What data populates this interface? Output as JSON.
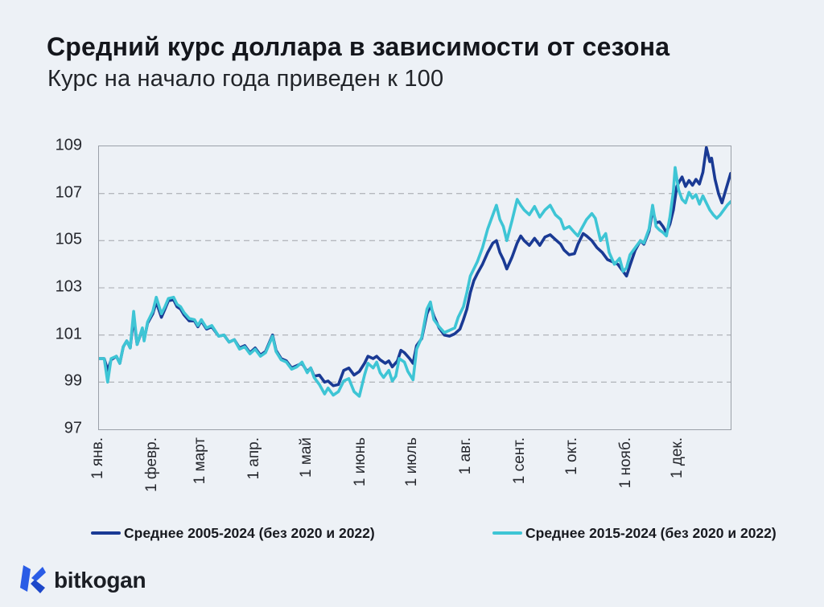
{
  "header": {
    "title": "Средний курс доллара в зависимости от сезона",
    "subtitle": "Курс на начало года приведен к 100"
  },
  "colors": {
    "background": "#edf1f6",
    "plot_border": "#9ba0a8",
    "gridline": "#b5b8be",
    "series_dark": "#1a3a94",
    "series_cyan": "#3ec5d5",
    "text_dark": "#14161c",
    "logo_blue": "#2a5ce6",
    "logo_blue_dark": "#1d47c9"
  },
  "footer": {
    "logo_text": "bitkogan"
  },
  "chart_data": {
    "type": "line",
    "title": "Средний курс доллара в зависимости от сезона",
    "subtitle": "Курс на начало года приведен к 100",
    "xlabel": "",
    "ylabel": "",
    "x_unit": "day_of_year",
    "x_range": [
      0,
      364
    ],
    "ylim": [
      97,
      109
    ],
    "yticks": [
      97,
      99,
      101,
      103,
      105,
      107,
      109
    ],
    "grid": "horizontal dashed",
    "legend_position": "bottom",
    "x_tick_days": [
      0,
      31,
      59,
      90,
      120,
      151,
      181,
      212,
      243,
      273,
      304,
      334
    ],
    "x_tick_labels": [
      "1 янв.",
      "1 февр.",
      "1 март",
      "1 апр.",
      "1 май",
      "1 июнь",
      "1 июль",
      "1 авг.",
      "1 сент.",
      "1 окт.",
      "1 нояб.",
      "1 дек."
    ],
    "series": [
      {
        "name": "Среднее 2005-2024 (без 2020 и 2022)",
        "color": "#1a3a94",
        "points": [
          [
            0,
            100.0
          ],
          [
            3,
            100.0
          ],
          [
            5,
            99.5
          ],
          [
            7,
            99.95
          ],
          [
            10,
            100.1
          ],
          [
            12,
            99.8
          ],
          [
            14,
            100.5
          ],
          [
            16,
            100.75
          ],
          [
            18,
            100.45
          ],
          [
            20,
            101.75
          ],
          [
            22,
            100.6
          ],
          [
            25,
            101.25
          ],
          [
            26,
            100.8
          ],
          [
            28,
            101.5
          ],
          [
            31,
            101.9
          ],
          [
            33,
            102.4
          ],
          [
            36,
            101.75
          ],
          [
            38,
            102.1
          ],
          [
            40,
            102.45
          ],
          [
            43,
            102.5
          ],
          [
            45,
            102.2
          ],
          [
            47,
            102.1
          ],
          [
            49,
            101.85
          ],
          [
            52,
            101.6
          ],
          [
            55,
            101.6
          ],
          [
            57,
            101.35
          ],
          [
            59,
            101.6
          ],
          [
            62,
            101.25
          ],
          [
            65,
            101.35
          ],
          [
            69,
            100.95
          ],
          [
            72,
            101.0
          ],
          [
            75,
            100.7
          ],
          [
            78,
            100.8
          ],
          [
            81,
            100.45
          ],
          [
            84,
            100.55
          ],
          [
            87,
            100.25
          ],
          [
            90,
            100.45
          ],
          [
            93,
            100.15
          ],
          [
            96,
            100.3
          ],
          [
            100,
            101.0
          ],
          [
            102,
            100.35
          ],
          [
            105,
            100.0
          ],
          [
            108,
            99.9
          ],
          [
            111,
            99.6
          ],
          [
            114,
            99.7
          ],
          [
            117,
            99.8
          ],
          [
            120,
            99.45
          ],
          [
            122,
            99.6
          ],
          [
            124,
            99.25
          ],
          [
            127,
            99.3
          ],
          [
            130,
            99.0
          ],
          [
            132,
            99.05
          ],
          [
            135,
            98.85
          ],
          [
            138,
            98.9
          ],
          [
            141,
            99.5
          ],
          [
            144,
            99.6
          ],
          [
            147,
            99.3
          ],
          [
            150,
            99.45
          ],
          [
            153,
            99.8
          ],
          [
            155,
            100.1
          ],
          [
            158,
            100.0
          ],
          [
            160,
            100.1
          ],
          [
            162,
            99.95
          ],
          [
            165,
            99.8
          ],
          [
            167,
            99.9
          ],
          [
            169,
            99.65
          ],
          [
            172,
            99.9
          ],
          [
            174,
            100.35
          ],
          [
            176,
            100.25
          ],
          [
            179,
            100.0
          ],
          [
            181,
            99.8
          ],
          [
            183,
            100.55
          ],
          [
            186,
            100.85
          ],
          [
            189,
            101.9
          ],
          [
            191,
            102.25
          ],
          [
            193,
            101.8
          ],
          [
            196,
            101.3
          ],
          [
            199,
            101.0
          ],
          [
            202,
            100.95
          ],
          [
            205,
            101.05
          ],
          [
            208,
            101.25
          ],
          [
            210,
            101.65
          ],
          [
            212,
            102.1
          ],
          [
            214,
            102.8
          ],
          [
            216,
            103.3
          ],
          [
            218,
            103.6
          ],
          [
            221,
            104.0
          ],
          [
            224,
            104.5
          ],
          [
            227,
            104.9
          ],
          [
            229,
            105.0
          ],
          [
            231,
            104.5
          ],
          [
            233,
            104.2
          ],
          [
            235,
            103.8
          ],
          [
            238,
            104.3
          ],
          [
            241,
            104.9
          ],
          [
            243,
            105.2
          ],
          [
            245,
            105.0
          ],
          [
            248,
            104.8
          ],
          [
            251,
            105.1
          ],
          [
            254,
            104.8
          ],
          [
            257,
            105.15
          ],
          [
            260,
            105.25
          ],
          [
            263,
            105.05
          ],
          [
            266,
            104.85
          ],
          [
            268,
            104.6
          ],
          [
            271,
            104.4
          ],
          [
            274,
            104.45
          ],
          [
            276,
            104.85
          ],
          [
            279,
            105.3
          ],
          [
            281,
            105.2
          ],
          [
            284,
            105.0
          ],
          [
            287,
            104.7
          ],
          [
            290,
            104.5
          ],
          [
            293,
            104.2
          ],
          [
            296,
            104.1
          ],
          [
            299,
            104.0
          ],
          [
            301,
            103.8
          ],
          [
            304,
            103.5
          ],
          [
            306,
            103.95
          ],
          [
            309,
            104.6
          ],
          [
            312,
            105.0
          ],
          [
            314,
            104.85
          ],
          [
            317,
            105.4
          ],
          [
            319,
            106.3
          ],
          [
            321,
            105.75
          ],
          [
            323,
            105.8
          ],
          [
            325,
            105.6
          ],
          [
            327,
            105.35
          ],
          [
            329,
            105.7
          ],
          [
            331,
            106.3
          ],
          [
            333,
            107.3
          ],
          [
            334,
            107.45
          ],
          [
            336,
            107.7
          ],
          [
            338,
            107.3
          ],
          [
            340,
            107.55
          ],
          [
            342,
            107.35
          ],
          [
            344,
            107.6
          ],
          [
            346,
            107.4
          ],
          [
            348,
            107.9
          ],
          [
            350,
            108.95
          ],
          [
            352,
            108.35
          ],
          [
            353,
            108.5
          ],
          [
            355,
            107.6
          ],
          [
            357,
            107.0
          ],
          [
            359,
            106.6
          ],
          [
            361,
            107.1
          ],
          [
            363,
            107.6
          ],
          [
            364,
            107.85
          ]
        ]
      },
      {
        "name": "Среднее 2015-2024 (без 2020 и 2022)",
        "color": "#3ec5d5",
        "points": [
          [
            0,
            100.0
          ],
          [
            3,
            100.0
          ],
          [
            5,
            99.0
          ],
          [
            7,
            100.0
          ],
          [
            10,
            100.1
          ],
          [
            12,
            99.8
          ],
          [
            14,
            100.5
          ],
          [
            16,
            100.75
          ],
          [
            18,
            100.45
          ],
          [
            20,
            102.0
          ],
          [
            22,
            100.6
          ],
          [
            25,
            101.3
          ],
          [
            26,
            100.75
          ],
          [
            28,
            101.55
          ],
          [
            31,
            102.0
          ],
          [
            33,
            102.6
          ],
          [
            36,
            101.9
          ],
          [
            38,
            102.2
          ],
          [
            40,
            102.55
          ],
          [
            43,
            102.6
          ],
          [
            45,
            102.3
          ],
          [
            47,
            102.2
          ],
          [
            49,
            101.95
          ],
          [
            52,
            101.7
          ],
          [
            55,
            101.65
          ],
          [
            57,
            101.4
          ],
          [
            59,
            101.65
          ],
          [
            62,
            101.3
          ],
          [
            65,
            101.4
          ],
          [
            69,
            100.95
          ],
          [
            72,
            101.0
          ],
          [
            75,
            100.7
          ],
          [
            78,
            100.8
          ],
          [
            81,
            100.4
          ],
          [
            84,
            100.5
          ],
          [
            87,
            100.2
          ],
          [
            90,
            100.4
          ],
          [
            93,
            100.1
          ],
          [
            96,
            100.25
          ],
          [
            100,
            100.95
          ],
          [
            102,
            100.3
          ],
          [
            105,
            99.95
          ],
          [
            108,
            99.85
          ],
          [
            111,
            99.55
          ],
          [
            114,
            99.65
          ],
          [
            117,
            99.85
          ],
          [
            120,
            99.4
          ],
          [
            122,
            99.6
          ],
          [
            124,
            99.2
          ],
          [
            127,
            98.9
          ],
          [
            130,
            98.5
          ],
          [
            132,
            98.75
          ],
          [
            135,
            98.45
          ],
          [
            138,
            98.6
          ],
          [
            141,
            99.05
          ],
          [
            144,
            99.15
          ],
          [
            147,
            98.6
          ],
          [
            150,
            98.4
          ],
          [
            153,
            99.3
          ],
          [
            155,
            99.8
          ],
          [
            158,
            99.6
          ],
          [
            160,
            99.85
          ],
          [
            162,
            99.4
          ],
          [
            164,
            99.2
          ],
          [
            167,
            99.5
          ],
          [
            169,
            99.05
          ],
          [
            171,
            99.25
          ],
          [
            173,
            100.0
          ],
          [
            176,
            99.85
          ],
          [
            178,
            99.45
          ],
          [
            181,
            99.1
          ],
          [
            183,
            100.4
          ],
          [
            186,
            100.9
          ],
          [
            189,
            102.1
          ],
          [
            191,
            102.4
          ],
          [
            193,
            101.65
          ],
          [
            196,
            101.35
          ],
          [
            199,
            101.1
          ],
          [
            202,
            101.2
          ],
          [
            205,
            101.3
          ],
          [
            207,
            101.75
          ],
          [
            210,
            102.2
          ],
          [
            212,
            102.8
          ],
          [
            214,
            103.5
          ],
          [
            216,
            103.8
          ],
          [
            218,
            104.1
          ],
          [
            221,
            104.7
          ],
          [
            224,
            105.5
          ],
          [
            227,
            106.1
          ],
          [
            229,
            106.5
          ],
          [
            231,
            105.9
          ],
          [
            233,
            105.6
          ],
          [
            235,
            105.0
          ],
          [
            238,
            105.85
          ],
          [
            241,
            106.75
          ],
          [
            243,
            106.5
          ],
          [
            245,
            106.3
          ],
          [
            248,
            106.1
          ],
          [
            251,
            106.45
          ],
          [
            254,
            106.0
          ],
          [
            257,
            106.3
          ],
          [
            260,
            106.5
          ],
          [
            263,
            106.1
          ],
          [
            266,
            105.9
          ],
          [
            268,
            105.5
          ],
          [
            271,
            105.6
          ],
          [
            274,
            105.35
          ],
          [
            276,
            105.2
          ],
          [
            278,
            105.5
          ],
          [
            281,
            105.9
          ],
          [
            284,
            106.15
          ],
          [
            286,
            105.95
          ],
          [
            289,
            105.0
          ],
          [
            292,
            105.3
          ],
          [
            294,
            104.5
          ],
          [
            297,
            104.0
          ],
          [
            300,
            104.25
          ],
          [
            302,
            103.7
          ],
          [
            304,
            103.85
          ],
          [
            306,
            104.4
          ],
          [
            309,
            104.7
          ],
          [
            312,
            105.0
          ],
          [
            314,
            104.9
          ],
          [
            317,
            105.5
          ],
          [
            319,
            106.5
          ],
          [
            321,
            105.6
          ],
          [
            323,
            105.45
          ],
          [
            325,
            105.35
          ],
          [
            327,
            105.2
          ],
          [
            329,
            106.0
          ],
          [
            331,
            107.1
          ],
          [
            332,
            108.1
          ],
          [
            334,
            107.15
          ],
          [
            336,
            106.75
          ],
          [
            338,
            106.6
          ],
          [
            340,
            107.05
          ],
          [
            342,
            106.8
          ],
          [
            344,
            106.95
          ],
          [
            346,
            106.55
          ],
          [
            348,
            106.9
          ],
          [
            350,
            106.6
          ],
          [
            352,
            106.3
          ],
          [
            354,
            106.1
          ],
          [
            356,
            105.95
          ],
          [
            358,
            106.1
          ],
          [
            360,
            106.3
          ],
          [
            362,
            106.5
          ],
          [
            364,
            106.65
          ]
        ]
      }
    ]
  },
  "legend": {
    "items": [
      {
        "label": "Среднее 2005-2024 (без 2020 и 2022)",
        "color": "#1a3a94"
      },
      {
        "label": "Среднее 2015-2024 (без 2020 и 2022)",
        "color": "#3ec5d5"
      }
    ]
  }
}
